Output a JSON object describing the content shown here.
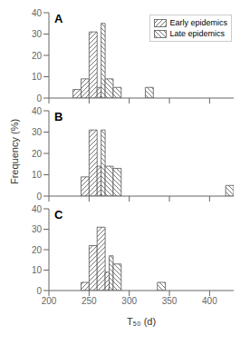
{
  "chart_data": [
    {
      "type": "bar",
      "title": "A",
      "x": [
        230,
        240,
        250,
        260,
        270,
        280,
        320
      ],
      "series": [
        {
          "name": "Early epidemics",
          "color": "#555555",
          "values": [
            4,
            9,
            31,
            5,
            null,
            null,
            null
          ]
        },
        {
          "name": "Late epidemics",
          "color": "#555555",
          "values": [
            null,
            null,
            null,
            35,
            9,
            5,
            5
          ]
        }
      ],
      "xlim": [
        200,
        430
      ],
      "xticks": [
        200,
        250,
        300,
        350,
        400
      ],
      "ylim": [
        0,
        40
      ],
      "yticks": [
        0,
        10,
        20,
        30,
        40
      ],
      "tick_labels": "y",
      "legend": "upper right"
    },
    {
      "type": "bar",
      "title": "B",
      "ylabel": "Frequency (%)",
      "x": [
        240,
        250,
        260,
        270,
        280,
        420
      ],
      "series": [
        {
          "name": "Early epidemics",
          "color": "#555555",
          "values": [
            9,
            31,
            14,
            null,
            null,
            null
          ]
        },
        {
          "name": "Late epidemics",
          "color": "#555555",
          "values": [
            null,
            null,
            31,
            14,
            13,
            5
          ]
        }
      ],
      "xlim": [
        200,
        430
      ],
      "xticks": [
        200,
        250,
        300,
        350,
        400
      ],
      "ylim": [
        0,
        40
      ],
      "yticks": [
        0,
        10,
        20,
        30,
        40
      ],
      "tick_labels": "y"
    },
    {
      "type": "bar",
      "title": "C",
      "xlabel": "T₅₀ (d)",
      "x": [
        240,
        250,
        260,
        270,
        280,
        335
      ],
      "series": [
        {
          "name": "Early epidemics",
          "color": "#555555",
          "values": [
            4,
            22,
            31,
            9,
            null,
            null
          ]
        },
        {
          "name": "Late epidemics",
          "color": "#555555",
          "values": [
            null,
            null,
            null,
            17,
            13,
            4
          ]
        }
      ],
      "xlim": [
        200,
        430
      ],
      "xticks": [
        200,
        250,
        300,
        350,
        400
      ],
      "ylim": [
        0,
        40
      ],
      "yticks": [
        0,
        10,
        20,
        30,
        40
      ]
    }
  ]
}
